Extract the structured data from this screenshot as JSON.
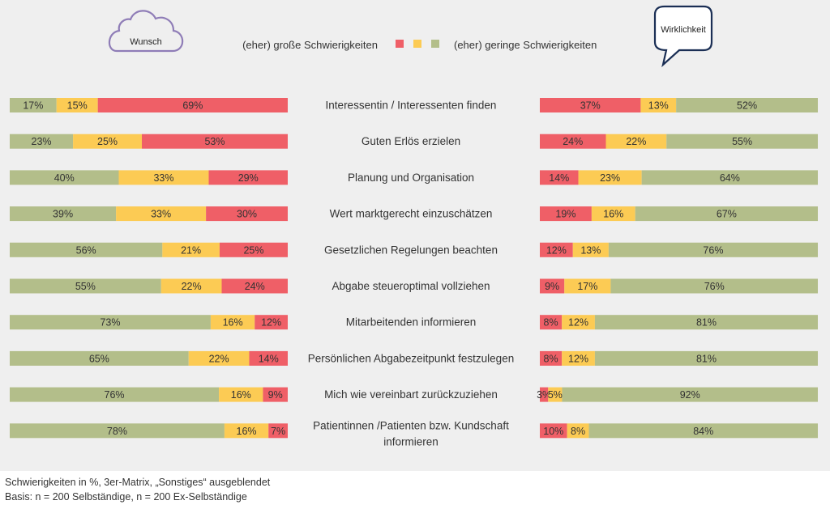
{
  "colors": {
    "red": "#ef5f67",
    "yellow": "#fccb54",
    "green": "#b3be8a",
    "wunsch_cloud": "#8f7db7",
    "wirklichkeit_bubble": "#1b2f55"
  },
  "wunsch_label": "Wunsch",
  "wirklichkeit_label": "Wirklichkeit",
  "legend": {
    "left": "(eher) große Schwierigkeiten",
    "right": "(eher) geringe Schwierigkeiten"
  },
  "footnotes": [
    "Schwierigkeiten in %, 3er-Matrix, „Sonstiges“ ausgeblendet",
    "Basis: n = 200 Selbständige, n = 200 Ex-Selbständige"
  ],
  "chart_data": [
    {
      "type": "bar",
      "name": "Wunsch",
      "stacked": true,
      "horizontal": true,
      "series_order": [
        "geringe",
        "mittlere",
        "große"
      ],
      "categories": [
        "Interessentin / Interessenten finden",
        "Guten Erlös erzielen",
        "Planung und Organisation",
        "Wert marktgerecht einzuschätzen",
        "Gesetzlichen Regelungen beachten",
        "Abgabe steueroptimal vollziehen",
        "Mitarbeitenden informieren",
        "Persönlichen Abgabezeitpunkt festzulegen",
        "Mich wie vereinbart zurückzuziehen",
        "Patientinnen /Patienten bzw. Kundschaft informieren"
      ],
      "series": [
        {
          "key": "geringe",
          "color": "#b3be8a",
          "values": [
            17,
            23,
            40,
            39,
            56,
            55,
            73,
            65,
            76,
            78
          ]
        },
        {
          "key": "mittlere",
          "color": "#fccb54",
          "values": [
            15,
            25,
            33,
            33,
            21,
            22,
            16,
            22,
            16,
            16
          ]
        },
        {
          "key": "große",
          "color": "#ef5f67",
          "values": [
            69,
            53,
            29,
            30,
            25,
            24,
            12,
            14,
            9,
            7
          ]
        }
      ]
    },
    {
      "type": "bar",
      "name": "Wirklichkeit",
      "stacked": true,
      "horizontal": true,
      "series_order": [
        "große",
        "mittlere",
        "geringe"
      ],
      "categories": [
        "Interessentin / Interessenten finden",
        "Guten Erlös erzielen",
        "Planung und Organisation",
        "Wert marktgerecht einzuschätzen",
        "Gesetzlichen Regelungen beachten",
        "Abgabe steueroptimal vollziehen",
        "Mitarbeitenden informieren",
        "Persönlichen Abgabezeitpunkt festzulegen",
        "Mich wie vereinbart zurückzuziehen",
        "Patientinnen /Patienten bzw. Kundschaft informieren"
      ],
      "series": [
        {
          "key": "große",
          "color": "#ef5f67",
          "values": [
            37,
            24,
            14,
            19,
            12,
            9,
            8,
            8,
            3,
            10
          ]
        },
        {
          "key": "mittlere",
          "color": "#fccb54",
          "values": [
            13,
            22,
            23,
            16,
            13,
            17,
            12,
            12,
            5,
            8
          ]
        },
        {
          "key": "geringe",
          "color": "#b3be8a",
          "values": [
            52,
            55,
            64,
            67,
            76,
            76,
            81,
            81,
            92,
            84
          ]
        }
      ]
    }
  ]
}
